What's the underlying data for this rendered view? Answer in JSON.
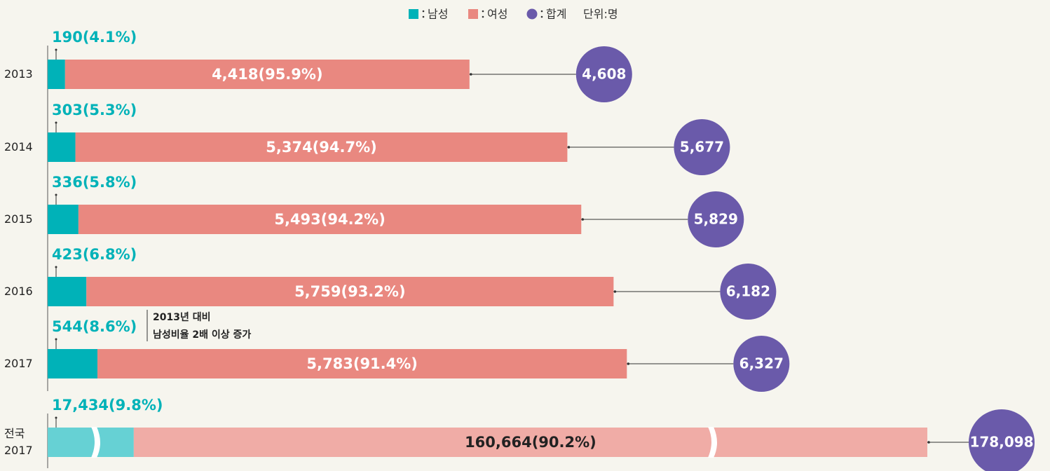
{
  "chart_data": {
    "type": "bar",
    "categories": [
      "2013",
      "2014",
      "2015",
      "2016",
      "2017",
      "전국\n2017"
    ],
    "series": [
      {
        "name": "남성",
        "color": "#00b2b8",
        "values": [
          190,
          303,
          336,
          423,
          544,
          17434
        ],
        "value_labels": [
          "190(4.1%)",
          "303(5.3%)",
          "336(5.8%)",
          "423(6.8%)",
          "544(8.6%)",
          "17,434(9.8%)"
        ]
      },
      {
        "name": "여성",
        "color": "#e98880",
        "values": [
          4418,
          5374,
          5493,
          5759,
          5783,
          160664
        ],
        "value_labels": [
          "4,418(95.9%)",
          "5,374(94.7%)",
          "5,493(94.2%)",
          "5,759(93.2%)",
          "5,783(91.4%)",
          "160,664(90.2%)"
        ]
      },
      {
        "name": "합계",
        "color": "#6a5aaa",
        "values": [
          4608,
          5677,
          5829,
          6182,
          6327,
          178098
        ],
        "value_labels": [
          "4,608",
          "5,677",
          "5,829",
          "6,182",
          "6,327",
          "178,098"
        ]
      }
    ],
    "unit": "단위:명",
    "annotation": [
      "2013년 대비",
      "남성비율 2배 이상 증가"
    ],
    "stacked": true,
    "orientation": "horizontal"
  }
}
